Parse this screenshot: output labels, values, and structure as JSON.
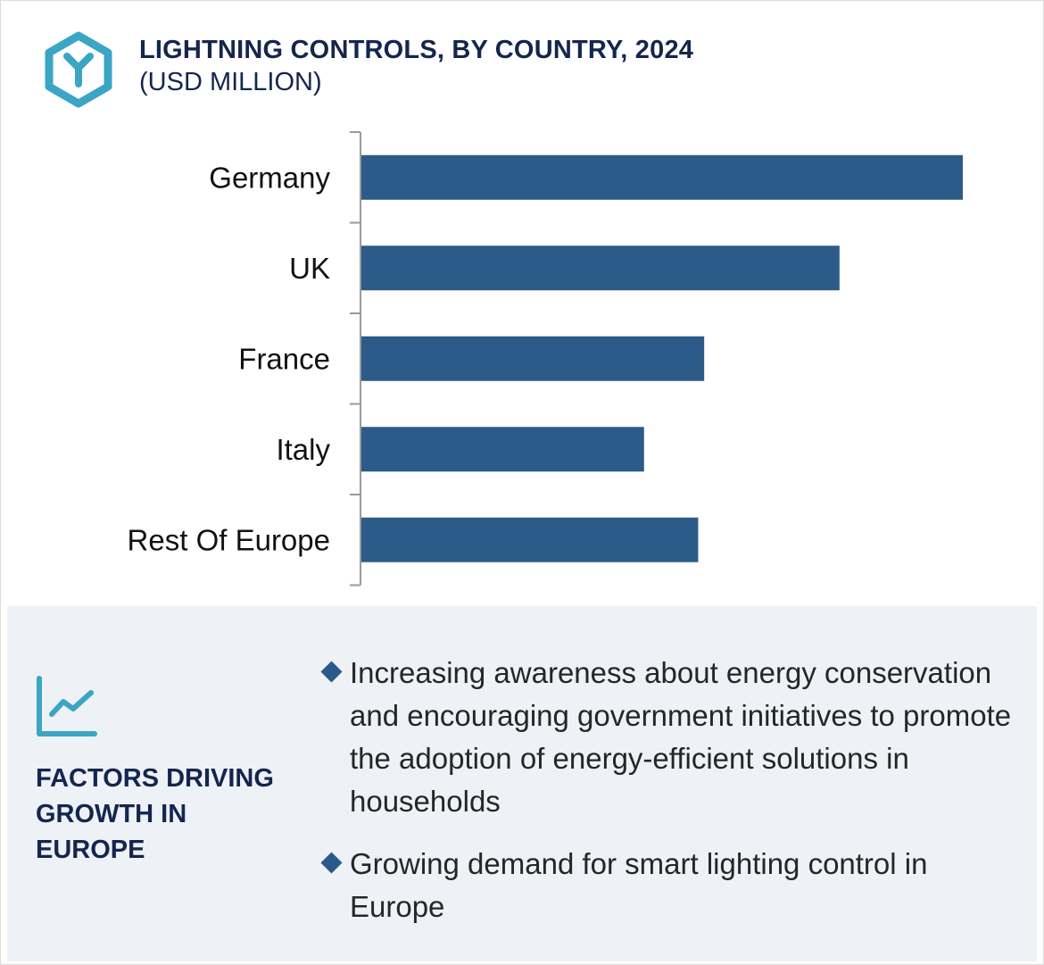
{
  "header": {
    "title": "LIGHTNING CONTROLS, BY COUNTRY, 2024",
    "subtitle": "(USD MILLION)",
    "logo_icon": "hexagon-y-logo-icon"
  },
  "colors": {
    "bar": "#2c5b89",
    "logo": "#3aa6c3",
    "title": "#14264e",
    "panel": "#eef1f6",
    "bullet": "#2b5a8a"
  },
  "chart_data": {
    "type": "bar",
    "orientation": "horizontal",
    "title": "LIGHTNING CONTROLS, BY COUNTRY, 2024",
    "subtitle": "(USD MILLION)",
    "categories": [
      "Germany",
      "UK",
      "France",
      "Italy",
      "Rest Of Europe"
    ],
    "values": [
      100,
      79.5,
      57,
      47,
      56
    ],
    "xlim": [
      0,
      100
    ],
    "grid": false,
    "legend": "none",
    "value_axis_labels": false
  },
  "factors": {
    "icon": "trend-line-chart-icon",
    "title": "FACTORS DRIVING GROWTH IN EUROPE",
    "items": [
      "Increasing awareness about energy conservation and encouraging government initiatives to promote the adoption of energy-efficient solutions in households",
      "Growing demand for smart lighting control in Europe"
    ]
  }
}
